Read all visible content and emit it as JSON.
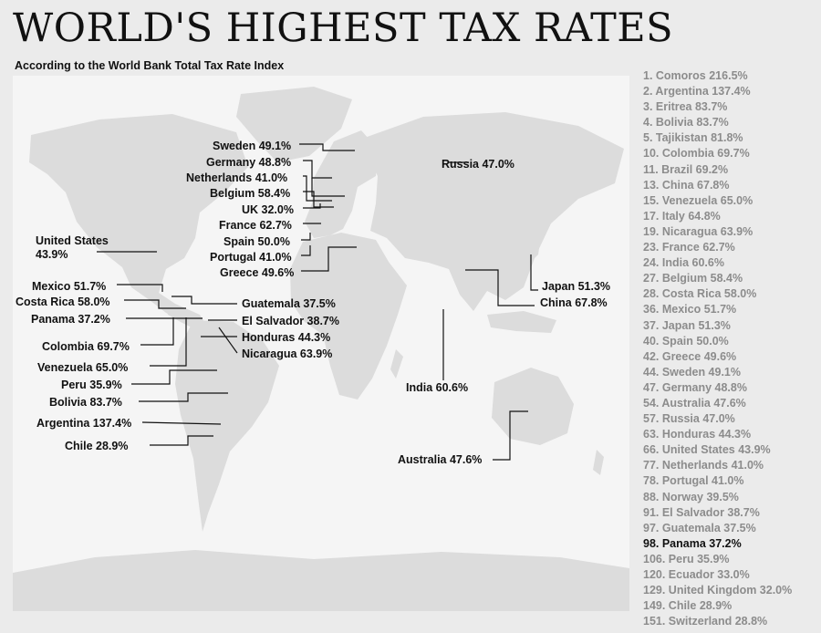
{
  "header": {
    "title": "WORLD'S HIGHEST TAX RATES",
    "subtitle": "According to the World Bank Total Tax Rate Index"
  },
  "map_labels": {
    "sweden": "Sweden 49.1%",
    "germany": "Germany 48.8%",
    "netherlands": "Netherlands 41.0%",
    "belgium": "Belgium 58.4%",
    "uk": "UK 32.0%",
    "france": "France 62.7%",
    "spain": "Spain 50.0%",
    "portugal": "Portugal 41.0%",
    "greece": "Greece 49.6%",
    "russia": "Russia 47.0%",
    "united_states_line1": "United States",
    "united_states_line2": "43.9%",
    "mexico": "Mexico 51.7%",
    "costa_rica": "Costa Rica 58.0%",
    "panama": "Panama 37.2%",
    "colombia": "Colombia 69.7%",
    "venezuela": "Venezuela 65.0%",
    "peru": "Peru 35.9%",
    "bolivia": "Bolivia 83.7%",
    "argentina": "Argentina 137.4%",
    "chile": "Chile 28.9%",
    "guatemala": "Guatemala 37.5%",
    "el_salvador": "El Salvador 38.7%",
    "honduras": "Honduras 44.3%",
    "nicaragua": "Nicaragua 63.9%",
    "japan": "Japan 51.3%",
    "china": "China 67.8%",
    "india": "India 60.6%",
    "australia": "Australia 47.6%"
  },
  "ranking": [
    "1. Comoros 216.5%",
    "2. Argentina 137.4%",
    "3. Eritrea 83.7%",
    "4. Bolivia 83.7%",
    "5. Tajikistan 81.8%",
    "10. Colombia 69.7%",
    "11. Brazil 69.2%",
    "13. China 67.8%",
    "15. Venezuela 65.0%",
    "17. Italy 64.8%",
    "19. Nicaragua 63.9%",
    "23. France 62.7%",
    "24. India 60.6%",
    "27. Belgium 58.4%",
    "28. Costa Rica 58.0%",
    "36. Mexico 51.7%",
    "37. Japan 51.3%",
    "40. Spain 50.0%",
    "42. Greece 49.6%",
    "44. Sweden 49.1%",
    "47. Germany 48.8%",
    "54. Australia 47.6%",
    "57. Russia 47.0%",
    "63. Honduras 44.3%",
    "66. United States 43.9%",
    "77. Netherlands 41.0%",
    "78. Portugal 41.0%",
    "88. Norway 39.5%",
    "91. El Salvador 38.7%",
    "97. Guatemala 37.5%",
    "98. Panama 37.2%",
    "106. Peru 35.9%",
    "120. Ecuador 33.0%",
    "129. United Kingdom 32.0%",
    "149. Chile 28.9%",
    "151. Switzerland 28.8%"
  ],
  "highlighted_rank_index": 30,
  "colors": {
    "land": "#dcdcdc",
    "ocean": "#f5f5f5",
    "text": "#111111",
    "ranking_text": "#8c8c8c"
  }
}
